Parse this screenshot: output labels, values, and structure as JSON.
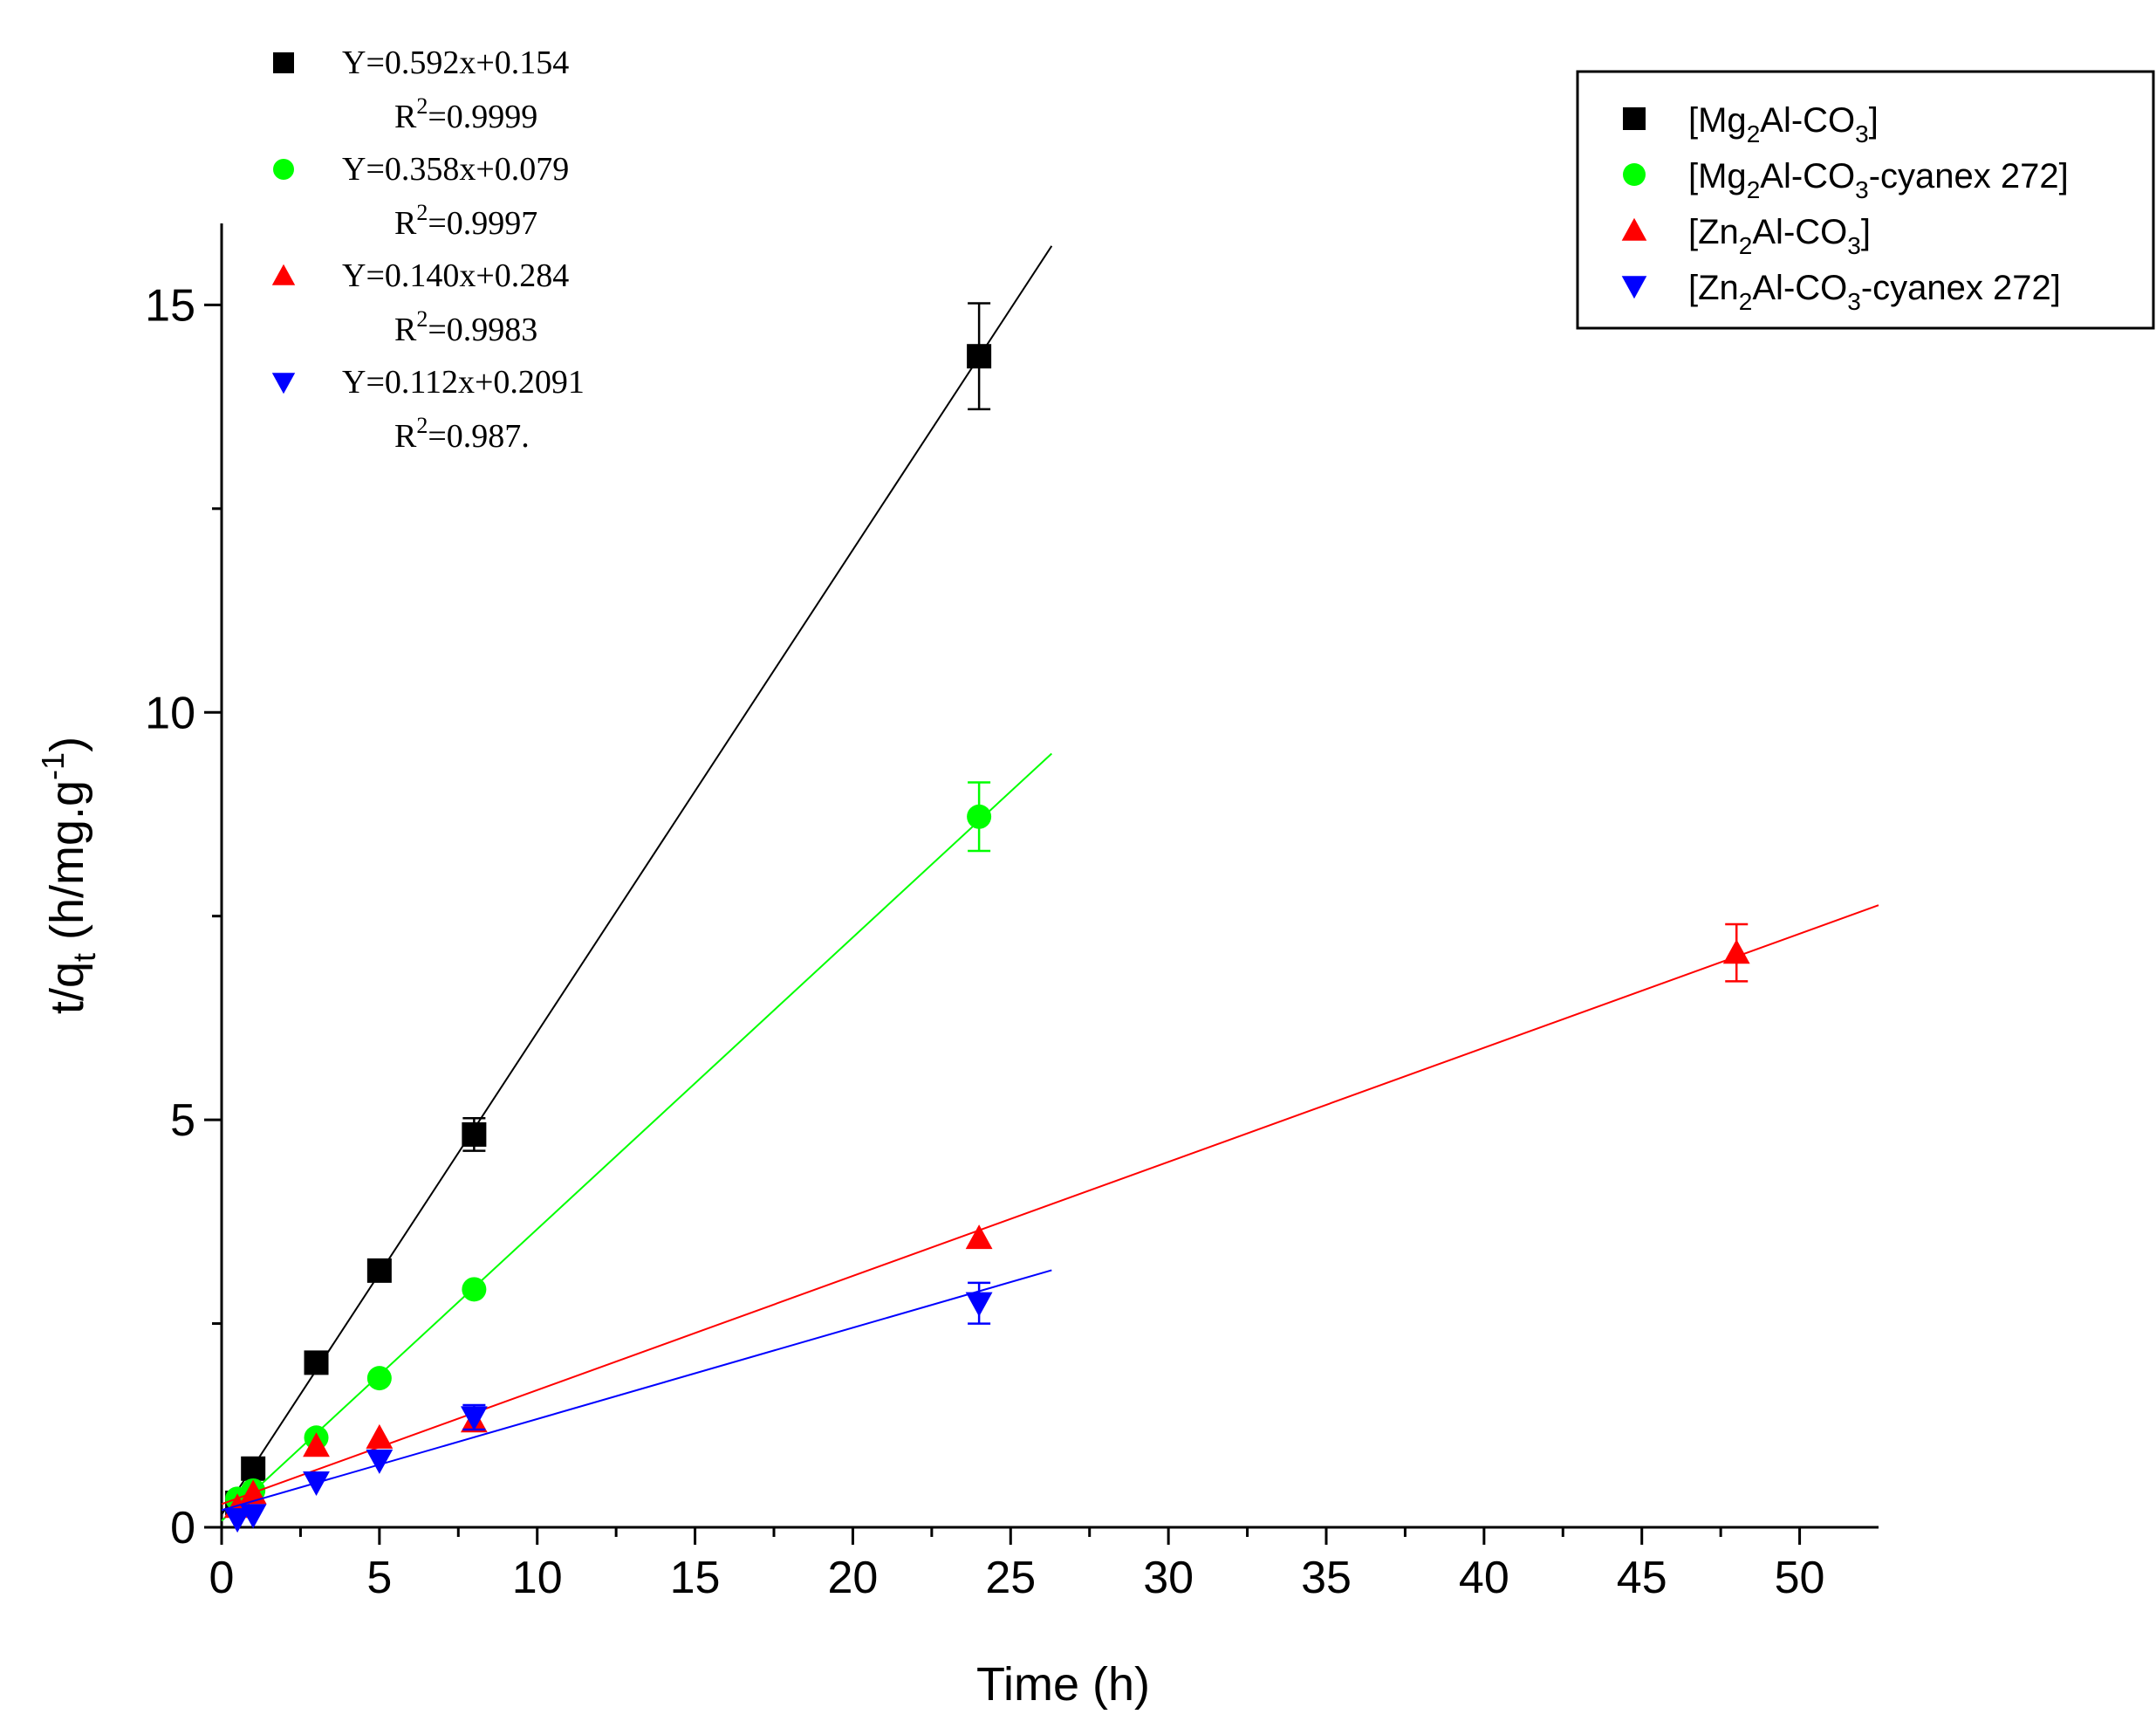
{
  "chart_data": {
    "type": "scatter",
    "xlabel": "Time (h)",
    "ylabel": {
      "main": "t/q",
      "sub": "t",
      "rest": " (h/mg.g",
      "sup": "-1",
      "close": ")"
    },
    "xlim": [
      0,
      52.5
    ],
    "ylim": [
      0,
      16
    ],
    "xticks": [
      0,
      5,
      10,
      15,
      20,
      25,
      30,
      35,
      40,
      45,
      50
    ],
    "yticks": [
      0,
      5,
      10,
      15
    ],
    "grid": false,
    "legend_position": "top-right",
    "series": [
      {
        "name": "[Mg2Al-CO3]",
        "name_parts": [
          [
            "[Mg",
            ""
          ],
          [
            "2",
            "sub"
          ],
          [
            "Al-CO",
            ""
          ],
          [
            "3",
            "sub"
          ],
          [
            "]",
            ""
          ]
        ],
        "color": "#000000",
        "marker": "square",
        "x": [
          0.5,
          1,
          3,
          5,
          8,
          24
        ],
        "y": [
          0.3,
          0.72,
          2.02,
          3.15,
          4.82,
          14.37
        ],
        "err": [
          0,
          0,
          0,
          0,
          0.2,
          0.65
        ],
        "fit": {
          "slope": 0.592,
          "intercept": 0.154,
          "x_range": [
            0,
            26.3
          ]
        },
        "equation": "Y=0.592x+0.154",
        "r2": "=0.9999"
      },
      {
        "name": "[Mg2Al-CO3-cyanex 272]",
        "name_parts": [
          [
            "[Mg",
            ""
          ],
          [
            "2",
            "sub"
          ],
          [
            "Al-CO",
            ""
          ],
          [
            "3",
            "sub"
          ],
          [
            "-cyanex 272]",
            ""
          ]
        ],
        "color": "#00ff00",
        "marker": "circle",
        "x": [
          0.5,
          1,
          3,
          5,
          8,
          24
        ],
        "y": [
          0.35,
          0.45,
          1.1,
          1.83,
          2.92,
          8.72
        ],
        "err": [
          0,
          0,
          0,
          0,
          0,
          0.42
        ],
        "fit": {
          "slope": 0.358,
          "intercept": 0.079,
          "x_range": [
            0,
            26.3
          ]
        },
        "equation": "Y=0.358x+0.079",
        "r2": "=0.9997"
      },
      {
        "name": "[Zn2Al-CO3]",
        "name_parts": [
          [
            "[Zn",
            ""
          ],
          [
            "2",
            "sub"
          ],
          [
            "Al-CO",
            ""
          ],
          [
            "3",
            "sub"
          ],
          [
            "]",
            ""
          ]
        ],
        "color": "#ff0000",
        "marker": "triangle-up",
        "x": [
          0.5,
          1,
          3,
          5,
          8,
          24,
          48
        ],
        "y": [
          0.25,
          0.42,
          1.0,
          1.1,
          1.3,
          3.55,
          7.05
        ],
        "err": [
          0,
          0,
          0,
          0,
          0,
          0,
          0.35
        ],
        "fit": {
          "slope": 0.14,
          "intercept": 0.284,
          "x_range": [
            0,
            52.5
          ]
        },
        "equation": "Y=0.140x+0.284",
        "r2": "=0.9983"
      },
      {
        "name": "[Zn2Al-CO3-cyanex 272]",
        "name_parts": [
          [
            "[Zn",
            ""
          ],
          [
            "2",
            "sub"
          ],
          [
            "Al-CO",
            ""
          ],
          [
            "3",
            "sub"
          ],
          [
            "-cyanex 272]",
            ""
          ]
        ],
        "color": "#0000ff",
        "marker": "triangle-down",
        "x": [
          0.5,
          1,
          3,
          5,
          8,
          24
        ],
        "y": [
          0.1,
          0.15,
          0.55,
          0.82,
          1.35,
          2.75
        ],
        "err": [
          0,
          0,
          0,
          0,
          0.15,
          0.25
        ],
        "fit": {
          "slope": 0.112,
          "intercept": 0.2091,
          "x_range": [
            0,
            26.3
          ]
        },
        "equation": "Y=0.112x+0.2091",
        "r2": "=0.987."
      }
    ],
    "annotation_r2_label": {
      "main": "R",
      "sup": "2"
    }
  }
}
